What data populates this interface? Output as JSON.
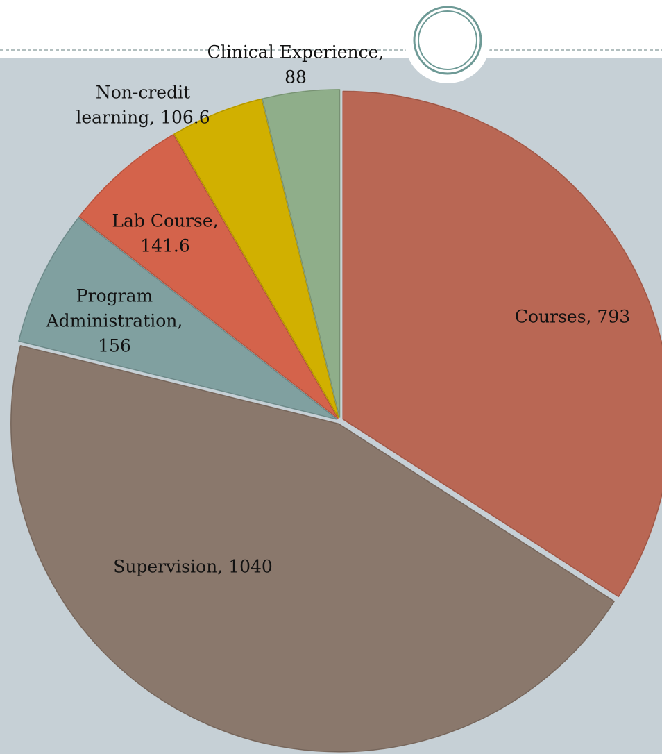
{
  "chart_data": {
    "type": "pie",
    "categories": [
      "Courses",
      "Supervision",
      "Program Administration",
      "Lab Course",
      "Non-credit learning",
      "Clinical Experience"
    ],
    "values": [
      793,
      1040,
      156,
      141.6,
      106.6,
      88
    ],
    "value_labels": [
      [
        "Courses, 793"
      ],
      [
        "Supervision, 1040"
      ],
      [
        "Program",
        "Administration,",
        "156"
      ],
      [
        "Lab Course,",
        "141.6"
      ],
      [
        "Non-credit",
        "learning, 106.6"
      ],
      [
        "Clinical Experience,",
        "88"
      ]
    ],
    "colors": [
      "#b96754",
      "#8a786c",
      "#80a0a0",
      "#d4634b",
      "#d1b000",
      "#8fae8a"
    ],
    "start_angle": 0,
    "direction": "clockwise"
  }
}
